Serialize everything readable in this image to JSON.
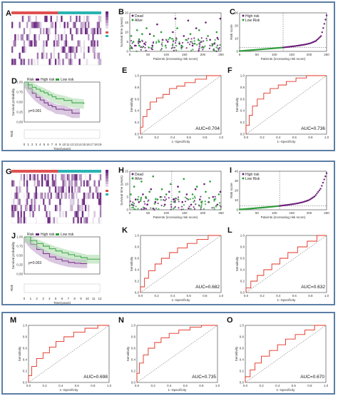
{
  "colors": {
    "frame": "#5b7fa6",
    "high_risk": "#6b1f7a",
    "low_risk": "#2e9e3a",
    "dead": "#6b1f7a",
    "alive": "#2e9e3a",
    "roc_curve": "#e03020",
    "diag": "#333333",
    "heat_dark": "#6a2780",
    "heat_light": "#ffffff",
    "bar_red": "#e05050",
    "bar_teal": "#2ab3b3",
    "km_high_band": "#b99bc7",
    "km_low_band": "#a8d8a8"
  },
  "panels": {
    "A": {
      "label": "A",
      "type": "heatmap",
      "legend_values": [
        "",
        "",
        "",
        ""
      ]
    },
    "G": {
      "label": "G",
      "type": "heatmap",
      "legend_values": [
        "",
        "",
        "",
        ""
      ]
    },
    "B": {
      "label": "B",
      "legend": [
        "Dead",
        "Alive"
      ],
      "xlabel": "Patients (increasing risk score)",
      "ylabel": "Survival time (years)",
      "xticks": [
        "0",
        "50",
        "100",
        "150",
        "200",
        "250"
      ],
      "yticks": [
        "0",
        "5",
        "10",
        "15",
        "20"
      ]
    },
    "H": {
      "label": "H",
      "legend": [
        "Dead",
        "Alive"
      ],
      "xlabel": "Patients (increasing risk score)",
      "ylabel": "Survival time (years)",
      "xticks": [
        "0",
        "50",
        "100",
        "150",
        "200",
        "250"
      ],
      "yticks": [
        "0",
        "5",
        "10",
        "15"
      ]
    },
    "C": {
      "label": "C",
      "legend": [
        "High risk",
        "Low Risk"
      ],
      "xlabel": "Patients (increasing risk score)",
      "ylabel": "Risk score",
      "xticks": [
        "0",
        "50",
        "100",
        "150",
        "200",
        "250"
      ],
      "yticks": [
        "0",
        "10",
        "20",
        "30"
      ]
    },
    "I": {
      "label": "I",
      "legend": [
        "High risk",
        "Low Risk"
      ],
      "xlabel": "Patients (increasing risk score)",
      "ylabel": "Risk score",
      "xticks": [
        "0",
        "50",
        "100",
        "150",
        "200",
        "250"
      ],
      "yticks": [
        "0",
        "10",
        "20",
        "30",
        "40"
      ]
    },
    "D": {
      "label": "D",
      "legend": [
        "Risk",
        "High risk",
        "Low risk"
      ],
      "ylabel": "Survival probability",
      "xlabel": "Time(years)",
      "pvalue": "p=0.001",
      "table_title": "Risk",
      "xticks": [
        "0",
        "1",
        "2",
        "3",
        "4",
        "5",
        "6",
        "7",
        "8",
        "9",
        "10",
        "11",
        "12",
        "13",
        "14",
        "15",
        "16",
        "17",
        "18",
        "19"
      ]
    },
    "J": {
      "label": "J",
      "legend": [
        "Risk",
        "High risk",
        "Low risk"
      ],
      "ylabel": "Survival probability",
      "xlabel": "Time(years)",
      "pvalue": "p=0.003",
      "table_title": "Risk",
      "xticks": [
        "0",
        "1",
        "2",
        "3",
        "4",
        "5",
        "6",
        "7",
        "8",
        "9",
        "10",
        "11",
        "12"
      ]
    },
    "E": {
      "label": "E",
      "auc": "AUC=0.704"
    },
    "F": {
      "label": "F",
      "auc": "AUC=0.736"
    },
    "K": {
      "label": "K",
      "auc": "AUC=0.682"
    },
    "L": {
      "label": "L",
      "auc": "AUC=0.632"
    },
    "M": {
      "label": "M",
      "auc": "AUC=0.698"
    },
    "N": {
      "label": "N",
      "auc": "AUC=0.735"
    },
    "O": {
      "label": "O",
      "auc": "AUC=0.670"
    },
    "roc_axes": {
      "xlabel": "1−Specificity",
      "ylabel": "Sensitivity",
      "ticks": [
        "0.0",
        "0.2",
        "0.4",
        "0.6",
        "0.8",
        "1.0"
      ]
    }
  },
  "chart_data": [
    {
      "panel": "B",
      "type": "scatter",
      "xlim": [
        0,
        250
      ],
      "ylim": [
        0,
        20
      ],
      "cutoff_x": 125,
      "series": [
        {
          "name": "Dead",
          "points": [
            [
              5,
              2
            ],
            [
              14,
              3
            ],
            [
              28,
              5
            ],
            [
              40,
              4
            ],
            [
              55,
              9
            ],
            [
              62,
              3
            ],
            [
              75,
              14
            ],
            [
              90,
              6
            ],
            [
              104,
              5
            ],
            [
              118,
              10
            ],
            [
              125,
              17
            ],
            [
              136,
              4
            ],
            [
              148,
              8
            ],
            [
              160,
              16
            ],
            [
              172,
              3
            ],
            [
              182,
              12
            ],
            [
              196,
              5
            ],
            [
              208,
              15
            ],
            [
              220,
              6
            ],
            [
              232,
              4
            ],
            [
              240,
              7
            ],
            [
              248,
              17
            ]
          ]
        },
        {
          "name": "Alive",
          "points": [
            [
              4,
              8
            ],
            [
              10,
              5
            ],
            [
              20,
              11
            ],
            [
              26,
              3
            ],
            [
              34,
              9
            ],
            [
              46,
              12
            ],
            [
              52,
              2
            ],
            [
              66,
              8
            ],
            [
              80,
              5
            ],
            [
              86,
              10
            ],
            [
              98,
              3
            ],
            [
              110,
              7
            ],
            [
              130,
              12
            ],
            [
              142,
              3
            ],
            [
              154,
              6
            ],
            [
              166,
              9
            ],
            [
              178,
              4
            ],
            [
              190,
              11
            ],
            [
              202,
              2
            ],
            [
              214,
              8
            ],
            [
              226,
              3
            ],
            [
              238,
              10
            ]
          ]
        }
      ]
    },
    {
      "panel": "H",
      "type": "scatter",
      "xlim": [
        0,
        250
      ],
      "ylim": [
        0,
        15
      ],
      "cutoff_x": 115,
      "series": [
        {
          "name": "Dead",
          "points": [
            [
              6,
              2
            ],
            [
              16,
              4
            ],
            [
              25,
              3
            ],
            [
              36,
              6
            ],
            [
              48,
              2
            ],
            [
              58,
              8
            ],
            [
              70,
              3
            ],
            [
              84,
              5
            ],
            [
              96,
              2
            ],
            [
              108,
              7
            ],
            [
              120,
              4
            ],
            [
              132,
              9
            ],
            [
              144,
              3
            ],
            [
              156,
              6
            ],
            [
              168,
              2
            ],
            [
              180,
              8
            ],
            [
              192,
              4
            ],
            [
              204,
              10
            ],
            [
              216,
              3
            ],
            [
              228,
              5
            ],
            [
              240,
              2
            ],
            [
              248,
              7
            ]
          ]
        },
        {
          "name": "Alive",
          "points": [
            [
              3,
              6
            ],
            [
              12,
              9
            ],
            [
              22,
              4
            ],
            [
              32,
              11
            ],
            [
              44,
              5
            ],
            [
              54,
              7
            ],
            [
              64,
              13
            ],
            [
              76,
              4
            ],
            [
              88,
              8
            ],
            [
              100,
              6
            ],
            [
              112,
              10
            ],
            [
              124,
              3
            ],
            [
              136,
              7
            ],
            [
              148,
              12
            ],
            [
              160,
              4
            ],
            [
              172,
              6
            ],
            [
              184,
              9
            ],
            [
              196,
              3
            ],
            [
              208,
              7
            ],
            [
              220,
              11
            ],
            [
              232,
              4
            ],
            [
              244,
              6
            ]
          ]
        }
      ]
    },
    {
      "panel": "C",
      "type": "line",
      "xlim": [
        0,
        250
      ],
      "ylim": [
        0,
        30
      ],
      "cutoff_x": 125,
      "cutoff_y": 3,
      "series": [
        {
          "name": "Low Risk",
          "x_range": [
            0,
            125
          ],
          "y": [
            0.2,
            0.6,
            1.0,
            1.4,
            1.8,
            2.2,
            2.6,
            3.0
          ]
        },
        {
          "name": "High risk",
          "x_range": [
            125,
            250
          ],
          "y": [
            3.0,
            3.5,
            4.0,
            4.6,
            5.3,
            6.3,
            8.0,
            12.0,
            28.0
          ]
        }
      ]
    },
    {
      "panel": "I",
      "type": "line",
      "xlim": [
        0,
        250
      ],
      "ylim": [
        0,
        40
      ],
      "cutoff_x": 115,
      "cutoff_y": 4,
      "series": [
        {
          "name": "Low Risk",
          "x_range": [
            0,
            115
          ],
          "y": [
            0.3,
            0.8,
            1.4,
            2.0,
            2.6,
            3.3,
            4.0
          ]
        },
        {
          "name": "High risk",
          "x_range": [
            115,
            250
          ],
          "y": [
            4.0,
            4.8,
            5.6,
            6.6,
            8.0,
            10.0,
            14.0,
            22.0,
            38.0
          ]
        }
      ]
    },
    {
      "panel": "D",
      "type": "line",
      "xlim": [
        0,
        19
      ],
      "ylim": [
        0,
        1
      ],
      "series": [
        {
          "name": "High risk",
          "x": [
            0,
            1,
            2,
            3,
            4,
            5,
            6,
            7,
            8,
            10,
            12,
            14
          ],
          "y": [
            1.0,
            0.84,
            0.72,
            0.62,
            0.55,
            0.48,
            0.42,
            0.38,
            0.32,
            0.3,
            0.22,
            0.22
          ]
        },
        {
          "name": "Low risk",
          "x": [
            0,
            1,
            2,
            3,
            4,
            5,
            6,
            7,
            8,
            10,
            12,
            15
          ],
          "y": [
            1.0,
            0.93,
            0.87,
            0.82,
            0.77,
            0.73,
            0.68,
            0.63,
            0.58,
            0.54,
            0.48,
            0.45
          ]
        }
      ]
    },
    {
      "panel": "J",
      "type": "line",
      "xlim": [
        0,
        12
      ],
      "ylim": [
        0,
        1
      ],
      "series": [
        {
          "name": "High risk",
          "x": [
            0,
            1,
            2,
            3,
            4,
            5,
            6,
            7,
            8,
            9,
            10
          ],
          "y": [
            1.0,
            0.8,
            0.66,
            0.55,
            0.46,
            0.4,
            0.35,
            0.31,
            0.29,
            0.28,
            0.28
          ]
        },
        {
          "name": "Low risk",
          "x": [
            0,
            1,
            2,
            3,
            4,
            5,
            6,
            7,
            8,
            9,
            10,
            12
          ],
          "y": [
            1.0,
            0.9,
            0.82,
            0.75,
            0.68,
            0.62,
            0.57,
            0.52,
            0.48,
            0.44,
            0.4,
            0.4
          ]
        }
      ]
    },
    {
      "panel": "E",
      "type": "line",
      "name": "ROC",
      "auc": 0.704,
      "x": [
        0,
        0,
        0.03,
        0.03,
        0.08,
        0.08,
        0.12,
        0.12,
        0.2,
        0.2,
        0.28,
        0.28,
        0.36,
        0.36,
        0.45,
        0.45,
        0.55,
        0.55,
        0.68,
        0.68,
        0.82,
        0.82,
        1.0
      ],
      "y": [
        0,
        0.12,
        0.12,
        0.3,
        0.3,
        0.42,
        0.42,
        0.55,
        0.55,
        0.62,
        0.62,
        0.68,
        0.68,
        0.78,
        0.78,
        0.82,
        0.82,
        0.88,
        0.88,
        0.94,
        0.94,
        1.0,
        1.0
      ]
    },
    {
      "panel": "F",
      "type": "line",
      "name": "ROC",
      "auc": 0.736,
      "x": [
        0,
        0,
        0.04,
        0.04,
        0.08,
        0.08,
        0.14,
        0.14,
        0.22,
        0.22,
        0.3,
        0.3,
        0.4,
        0.4,
        0.5,
        0.5,
        0.62,
        0.62,
        0.75,
        0.75,
        1.0
      ],
      "y": [
        0,
        0.15,
        0.15,
        0.32,
        0.32,
        0.48,
        0.48,
        0.6,
        0.6,
        0.7,
        0.7,
        0.78,
        0.78,
        0.84,
        0.84,
        0.9,
        0.9,
        0.96,
        0.96,
        1.0,
        1.0
      ]
    },
    {
      "panel": "K",
      "type": "line",
      "name": "ROC",
      "auc": 0.682,
      "x": [
        0,
        0,
        0.05,
        0.05,
        0.1,
        0.1,
        0.18,
        0.18,
        0.26,
        0.26,
        0.36,
        0.36,
        0.46,
        0.46,
        0.58,
        0.58,
        0.7,
        0.7,
        0.84,
        0.84,
        1.0
      ],
      "y": [
        0,
        0.1,
        0.1,
        0.25,
        0.25,
        0.38,
        0.38,
        0.5,
        0.5,
        0.6,
        0.6,
        0.7,
        0.7,
        0.78,
        0.78,
        0.86,
        0.86,
        0.93,
        0.93,
        1.0,
        1.0
      ]
    },
    {
      "panel": "L",
      "type": "line",
      "name": "ROC",
      "auc": 0.632,
      "x": [
        0,
        0,
        0.06,
        0.06,
        0.14,
        0.14,
        0.22,
        0.22,
        0.32,
        0.32,
        0.42,
        0.42,
        0.52,
        0.52,
        0.64,
        0.64,
        0.76,
        0.76,
        0.88,
        0.88,
        1.0
      ],
      "y": [
        0,
        0.08,
        0.08,
        0.2,
        0.2,
        0.3,
        0.3,
        0.4,
        0.4,
        0.5,
        0.5,
        0.6,
        0.6,
        0.7,
        0.7,
        0.8,
        0.8,
        0.9,
        0.9,
        1.0,
        1.0
      ]
    },
    {
      "panel": "M",
      "type": "line",
      "name": "ROC",
      "auc": 0.698,
      "x": [
        0,
        0,
        0.04,
        0.04,
        0.1,
        0.1,
        0.18,
        0.18,
        0.26,
        0.26,
        0.34,
        0.34,
        0.44,
        0.44,
        0.56,
        0.56,
        0.7,
        0.7,
        0.86,
        0.86,
        1.0
      ],
      "y": [
        0,
        0.12,
        0.12,
        0.28,
        0.28,
        0.42,
        0.42,
        0.52,
        0.52,
        0.62,
        0.62,
        0.72,
        0.72,
        0.8,
        0.8,
        0.88,
        0.88,
        0.95,
        0.95,
        1.0,
        1.0
      ]
    },
    {
      "panel": "N",
      "type": "line",
      "name": "ROC",
      "auc": 0.735,
      "x": [
        0,
        0,
        0.03,
        0.03,
        0.08,
        0.08,
        0.14,
        0.14,
        0.22,
        0.22,
        0.3,
        0.3,
        0.4,
        0.4,
        0.52,
        0.52,
        0.66,
        0.66,
        0.8,
        0.8,
        1.0
      ],
      "y": [
        0,
        0.16,
        0.16,
        0.34,
        0.34,
        0.48,
        0.48,
        0.6,
        0.6,
        0.7,
        0.7,
        0.78,
        0.78,
        0.86,
        0.86,
        0.92,
        0.92,
        0.97,
        0.97,
        1.0,
        1.0
      ]
    },
    {
      "panel": "O",
      "type": "line",
      "name": "ROC",
      "auc": 0.67,
      "x": [
        0,
        0,
        0.06,
        0.06,
        0.12,
        0.12,
        0.2,
        0.2,
        0.3,
        0.3,
        0.4,
        0.4,
        0.5,
        0.5,
        0.62,
        0.62,
        0.74,
        0.74,
        0.86,
        0.86,
        1.0
      ],
      "y": [
        0,
        0.1,
        0.1,
        0.22,
        0.22,
        0.34,
        0.34,
        0.46,
        0.46,
        0.56,
        0.56,
        0.66,
        0.66,
        0.76,
        0.76,
        0.84,
        0.84,
        0.92,
        0.92,
        1.0,
        1.0
      ]
    }
  ]
}
